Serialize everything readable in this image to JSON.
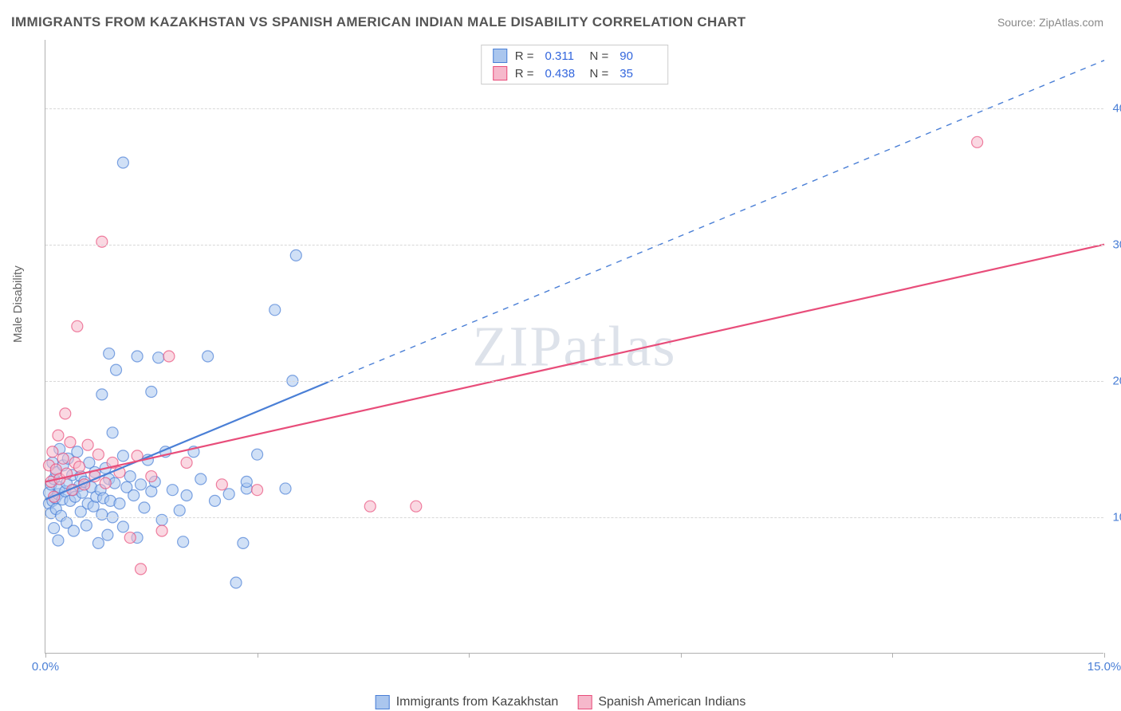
{
  "title": "IMMIGRANTS FROM KAZAKHSTAN VS SPANISH AMERICAN INDIAN MALE DISABILITY CORRELATION CHART",
  "source": "Source: ZipAtlas.com",
  "watermark": "ZIPatlas",
  "ylabel": "Male Disability",
  "chart": {
    "type": "scatter",
    "background_color": "#ffffff",
    "grid_color": "#d8d8d8",
    "border_color": "#b0b0b0",
    "xlim": [
      0.0,
      15.0
    ],
    "ylim": [
      0.0,
      45.0
    ],
    "xticks": [
      0.0,
      3.0,
      6.0,
      9.0,
      12.0,
      15.0
    ],
    "xtick_labels": {
      "0": "0.0%",
      "15": "15.0%"
    },
    "yticks": [
      10.0,
      20.0,
      30.0,
      40.0
    ],
    "ytick_labels": [
      "10.0%",
      "20.0%",
      "30.0%",
      "40.0%"
    ],
    "marker_radius": 7,
    "marker_opacity": 0.55,
    "line_width": 2.2,
    "series": [
      {
        "name": "Immigrants from Kazakhstan",
        "color": "#4a7fd6",
        "fill": "#aac6ee",
        "R": 0.311,
        "N": 90,
        "trend_solid": {
          "x1": 0.0,
          "y1": 11.3,
          "x2": 4.0,
          "y2": 19.9
        },
        "trend_dashed": {
          "x1": 4.0,
          "y1": 19.9,
          "x2": 15.0,
          "y2": 43.5
        },
        "points": [
          [
            0.05,
            11.0
          ],
          [
            0.05,
            11.8
          ],
          [
            0.08,
            10.3
          ],
          [
            0.08,
            12.4
          ],
          [
            0.1,
            11.2
          ],
          [
            0.1,
            14.0
          ],
          [
            0.12,
            9.2
          ],
          [
            0.12,
            12.8
          ],
          [
            0.14,
            11.4
          ],
          [
            0.15,
            10.6
          ],
          [
            0.15,
            13.3
          ],
          [
            0.18,
            8.3
          ],
          [
            0.18,
            11.7
          ],
          [
            0.2,
            12.2
          ],
          [
            0.2,
            15.0
          ],
          [
            0.22,
            10.1
          ],
          [
            0.24,
            11.3
          ],
          [
            0.25,
            13.8
          ],
          [
            0.28,
            11.9
          ],
          [
            0.3,
            9.6
          ],
          [
            0.3,
            12.5
          ],
          [
            0.32,
            14.3
          ],
          [
            0.35,
            11.2
          ],
          [
            0.38,
            13.1
          ],
          [
            0.4,
            9.0
          ],
          [
            0.4,
            12.0
          ],
          [
            0.42,
            11.5
          ],
          [
            0.45,
            14.8
          ],
          [
            0.48,
            12.3
          ],
          [
            0.5,
            10.4
          ],
          [
            0.5,
            13.0
          ],
          [
            0.52,
            11.8
          ],
          [
            0.55,
            12.6
          ],
          [
            0.58,
            9.4
          ],
          [
            0.6,
            11.0
          ],
          [
            0.62,
            14.0
          ],
          [
            0.65,
            12.2
          ],
          [
            0.68,
            10.8
          ],
          [
            0.7,
            13.3
          ],
          [
            0.72,
            11.5
          ],
          [
            0.75,
            8.1
          ],
          [
            0.78,
            12.0
          ],
          [
            0.8,
            10.2
          ],
          [
            0.8,
            19.0
          ],
          [
            0.82,
            11.4
          ],
          [
            0.85,
            13.6
          ],
          [
            0.88,
            8.7
          ],
          [
            0.9,
            12.8
          ],
          [
            0.9,
            22.0
          ],
          [
            0.92,
            11.2
          ],
          [
            0.95,
            10.0
          ],
          [
            0.95,
            16.2
          ],
          [
            0.98,
            12.5
          ],
          [
            1.0,
            20.8
          ],
          [
            1.05,
            11.0
          ],
          [
            1.1,
            9.3
          ],
          [
            1.1,
            14.5
          ],
          [
            1.1,
            36.0
          ],
          [
            1.15,
            12.2
          ],
          [
            1.2,
            13.0
          ],
          [
            1.25,
            11.6
          ],
          [
            1.3,
            8.5
          ],
          [
            1.3,
            21.8
          ],
          [
            1.35,
            12.4
          ],
          [
            1.4,
            10.7
          ],
          [
            1.45,
            14.2
          ],
          [
            1.5,
            11.9
          ],
          [
            1.5,
            19.2
          ],
          [
            1.55,
            12.6
          ],
          [
            1.6,
            21.7
          ],
          [
            1.65,
            9.8
          ],
          [
            1.7,
            14.8
          ],
          [
            1.8,
            12.0
          ],
          [
            1.9,
            10.5
          ],
          [
            1.95,
            8.2
          ],
          [
            2.0,
            11.6
          ],
          [
            2.1,
            14.8
          ],
          [
            2.2,
            12.8
          ],
          [
            2.3,
            21.8
          ],
          [
            2.4,
            11.2
          ],
          [
            2.6,
            11.7
          ],
          [
            2.7,
            5.2
          ],
          [
            2.8,
            8.1
          ],
          [
            2.85,
            12.1
          ],
          [
            2.85,
            12.6
          ],
          [
            3.0,
            14.6
          ],
          [
            3.25,
            25.2
          ],
          [
            3.4,
            12.1
          ],
          [
            3.5,
            20.0
          ],
          [
            3.55,
            29.2
          ]
        ]
      },
      {
        "name": "Spanish American Indians",
        "color": "#e84d7a",
        "fill": "#f6b8cb",
        "R": 0.438,
        "N": 35,
        "trend_solid": {
          "x1": 0.0,
          "y1": 12.6,
          "x2": 15.0,
          "y2": 30.0
        },
        "trend_dashed": null,
        "points": [
          [
            0.05,
            13.8
          ],
          [
            0.08,
            12.6
          ],
          [
            0.1,
            14.8
          ],
          [
            0.12,
            11.5
          ],
          [
            0.15,
            13.5
          ],
          [
            0.18,
            16.0
          ],
          [
            0.2,
            12.8
          ],
          [
            0.25,
            14.3
          ],
          [
            0.28,
            17.6
          ],
          [
            0.3,
            13.2
          ],
          [
            0.35,
            15.5
          ],
          [
            0.38,
            12.0
          ],
          [
            0.42,
            14.0
          ],
          [
            0.45,
            24.0
          ],
          [
            0.48,
            13.7
          ],
          [
            0.55,
            12.4
          ],
          [
            0.6,
            15.3
          ],
          [
            0.7,
            13.0
          ],
          [
            0.75,
            14.6
          ],
          [
            0.8,
            30.2
          ],
          [
            0.85,
            12.5
          ],
          [
            0.95,
            14.0
          ],
          [
            1.05,
            13.3
          ],
          [
            1.2,
            8.5
          ],
          [
            1.3,
            14.5
          ],
          [
            1.35,
            6.2
          ],
          [
            1.5,
            13.0
          ],
          [
            1.65,
            9.0
          ],
          [
            1.75,
            21.8
          ],
          [
            2.0,
            14.0
          ],
          [
            2.5,
            12.4
          ],
          [
            3.0,
            12.0
          ],
          [
            4.6,
            10.8
          ],
          [
            5.25,
            10.8
          ],
          [
            13.2,
            37.5
          ]
        ]
      }
    ]
  },
  "legend_top": {
    "R_label": "R  =",
    "N_label": "N  ="
  },
  "legend_bottom_labels": [
    "Immigrants from Kazakhstan",
    "Spanish American Indians"
  ]
}
